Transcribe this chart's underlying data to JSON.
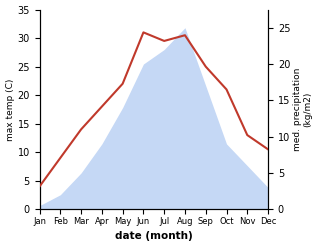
{
  "months": [
    "Jan",
    "Feb",
    "Mar",
    "Apr",
    "May",
    "Jun",
    "Jul",
    "Aug",
    "Sep",
    "Oct",
    "Nov",
    "Dec"
  ],
  "temperature": [
    4.0,
    9.0,
    14.0,
    18.0,
    22.0,
    31.0,
    29.5,
    30.5,
    25.0,
    21.0,
    13.0,
    10.5
  ],
  "precipitation": [
    0.5,
    2.0,
    5.0,
    9.0,
    14.0,
    20.0,
    22.0,
    25.0,
    17.0,
    9.0,
    6.0,
    3.0
  ],
  "temp_color": "#c0392b",
  "precip_fill_color": "#c5d8f5",
  "temp_ylim": [
    0,
    35
  ],
  "precip_ylim": [
    0,
    27.5
  ],
  "xlabel": "date (month)",
  "ylabel_left": "max temp (C)",
  "ylabel_right": "med. precipitation\n(kg/m2)",
  "temp_yticks": [
    0,
    5,
    10,
    15,
    20,
    25,
    30,
    35
  ],
  "precip_yticks": [
    0,
    5,
    10,
    15,
    20,
    25
  ],
  "background_color": "#ffffff"
}
